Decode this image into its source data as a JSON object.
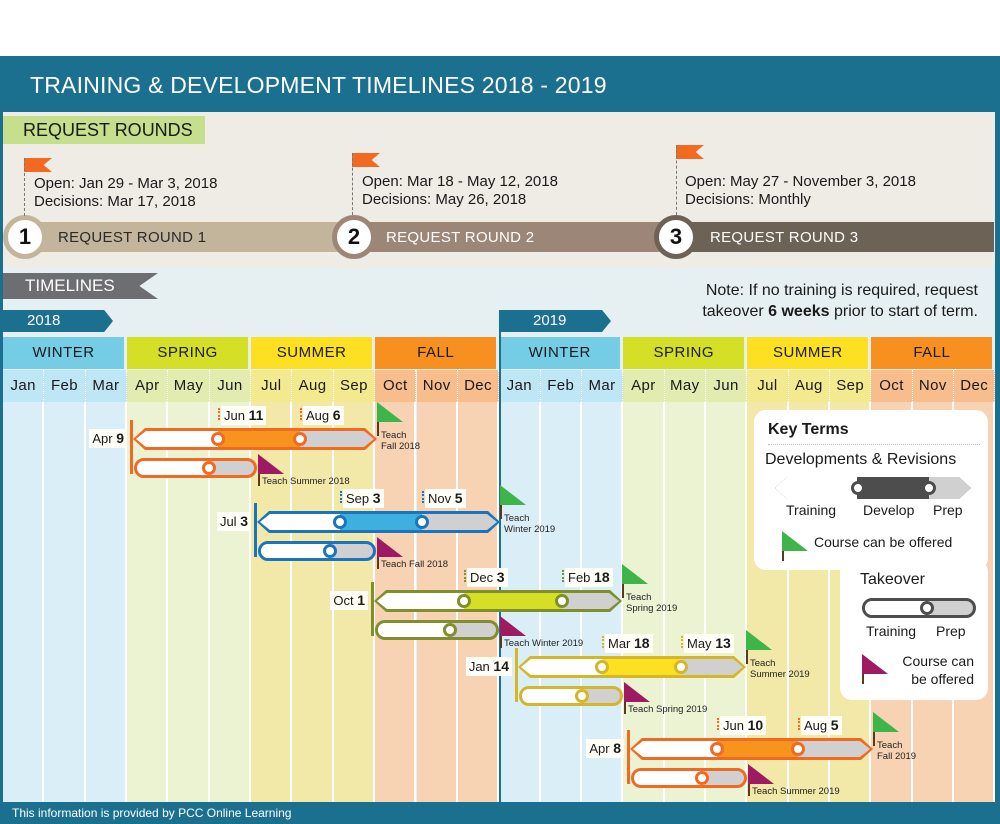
{
  "title": "TRAINING & DEVELOPMENT TIMELINES 2018 - 2019",
  "request_rounds": {
    "heading": "REQUEST ROUNDS",
    "rounds": [
      {
        "number": "1",
        "label": "REQUEST ROUND 1",
        "open": "Open: Jan 29 - Mar 3, 2018",
        "decisions": "Decisions: Mar 17, 2018",
        "color": "#c2b59b"
      },
      {
        "number": "2",
        "label": "REQUEST ROUND 2",
        "open": "Open: Mar 18 - May 12, 2018",
        "decisions": "Decisions: May 26, 2018",
        "color": "#9c8677"
      },
      {
        "number": "3",
        "label": "REQUEST ROUND 3",
        "open": "Open: May 27 - November 3, 2018",
        "decisions": "Decisions: Monthly",
        "color": "#6d6256"
      }
    ]
  },
  "timelines": {
    "heading": "TIMELINES",
    "note_line1": "Note: If no training is required, request",
    "note_pre": "takeover ",
    "note_bold": "6 weeks",
    "note_post": " prior to start of term.",
    "years": [
      "2018",
      "2019"
    ],
    "seasons": [
      "WINTER",
      "SPRING",
      "SUMMER",
      "FALL"
    ],
    "season_colors": [
      "#74cde4",
      "#d4df26",
      "#fde021",
      "#f7901e"
    ],
    "month_colors": [
      "#bfe6f4",
      "#e2ecb0",
      "#f3e98e",
      "#f7bd8d"
    ],
    "col_colors": [
      "#d9eef6",
      "#ecf3d2",
      "#f2e8a7",
      "#f8d3b3"
    ],
    "months": [
      "Jan",
      "Feb",
      "Mar",
      "Apr",
      "May",
      "Jun",
      "Jul",
      "Aug",
      "Sep",
      "Oct",
      "Nov",
      "Dec"
    ]
  },
  "tracks": [
    {
      "start_m": "Apr",
      "start_d": "9",
      "mid1_m": "Jun",
      "mid1_d": "11",
      "mid2_m": "Aug",
      "mid2_d": "6",
      "teach_dev_1": "Teach",
      "teach_dev_2": "Fall 2018",
      "teach_takeover": "Teach Summer 2018",
      "color": "#f26a22",
      "fill": "#f7941d"
    },
    {
      "start_m": "Jul",
      "start_d": "3",
      "mid1_m": "Sep",
      "mid1_d": "3",
      "mid2_m": "Nov",
      "mid2_d": "5",
      "teach_dev_1": "Teach",
      "teach_dev_2": "Winter 2019",
      "teach_takeover": "Teach Fall 2018",
      "color": "#1c75bc",
      "fill": "#3eb0e0"
    },
    {
      "start_m": "Oct",
      "start_d": "1",
      "mid1_m": "Dec",
      "mid1_d": "3",
      "mid2_m": "Feb",
      "mid2_d": "18",
      "teach_dev_1": "Teach",
      "teach_dev_2": "Spring 2019",
      "teach_takeover": "Teach Winter 2019",
      "color": "#7f8f2c",
      "fill": "#d4df26"
    },
    {
      "start_m": "Jan",
      "start_d": "14",
      "mid1_m": "Mar",
      "mid1_d": "18",
      "mid2_m": "May",
      "mid2_d": "13",
      "teach_dev_1": "Teach",
      "teach_dev_2": "Summer 2019",
      "teach_takeover": "Teach Spring 2019",
      "color": "#d4b62a",
      "fill": "#fde021"
    },
    {
      "start_m": "Apr",
      "start_d": "8",
      "mid1_m": "Jun",
      "mid1_d": "10",
      "mid2_m": "Aug",
      "mid2_d": "5",
      "teach_dev_1": "Teach",
      "teach_dev_2": "Fall 2019",
      "teach_takeover": "Teach Summer 2019",
      "color": "#f26a22",
      "fill": "#f7941d"
    }
  ],
  "key_terms": {
    "heading": "Key Terms",
    "dev_heading": "Developments & Revisions",
    "dev_labels": [
      "Training",
      "Develop",
      "Prep"
    ],
    "green_flag_label": "Course can be offered",
    "takeover_heading": "Takeover",
    "takeover_labels": [
      "Training",
      "Prep"
    ],
    "purple_flag_label_1": "Course can",
    "purple_flag_label_2": "be offered"
  },
  "footer": "This information is provided by PCC Online Learning"
}
